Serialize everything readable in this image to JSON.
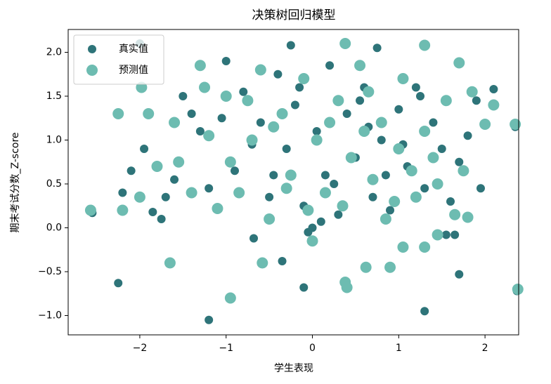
{
  "chart_data": {
    "type": "scatter",
    "title": "决策树回归模型",
    "x_label": "学生表现",
    "y_label": "期末考试分数_Z-score",
    "xlim": [
      -2.83,
      2.39
    ],
    "ylim": [
      -1.22,
      2.26
    ],
    "xticks": [
      {
        "value": -2,
        "label": "−2"
      },
      {
        "value": -1,
        "label": "−1"
      },
      0,
      1,
      2
    ],
    "yticks": [
      {
        "value": -1,
        "label": "−1.0"
      },
      {
        "value": -0.5,
        "label": "−0.5"
      },
      {
        "value": 0,
        "label": "0.0"
      },
      {
        "value": 0.5,
        "label": "0.5"
      },
      {
        "value": 1,
        "label": "1.0"
      },
      {
        "value": 1.5,
        "label": "1.5"
      },
      {
        "value": 2,
        "label": "2.0"
      }
    ],
    "legend": "upper left",
    "series": [
      {
        "name": "真实值",
        "color": "#2e7479",
        "x": [
          -2.55,
          -2.25,
          -1.2,
          1.3,
          2.37,
          1.7,
          -0.1,
          -0.35,
          -0.68,
          1.55,
          -2.0,
          -0.25,
          0.75,
          1.9,
          2.1,
          -2.2,
          -2.1,
          -1.95,
          -1.75,
          -1.85,
          -1.6,
          -1.5,
          -1.3,
          -1.2,
          -1.0,
          -0.9,
          -0.8,
          -0.6,
          -0.5,
          -0.4,
          -0.3,
          -0.2,
          -0.1,
          0.0,
          0.05,
          0.15,
          0.2,
          0.3,
          0.4,
          0.5,
          0.6,
          0.7,
          0.8,
          0.9,
          1.0,
          1.1,
          1.2,
          1.3,
          1.4,
          1.5,
          1.6,
          1.7,
          1.8,
          1.95,
          2.35,
          1.65,
          0.1,
          -0.05,
          -1.7,
          -1.4,
          -0.7,
          0.55,
          1.05,
          0.25,
          -0.15,
          0.65,
          -1.05,
          1.25,
          -0.45,
          0.85
        ],
        "values": [
          0.17,
          -0.63,
          -1.05,
          -0.95,
          -0.72,
          -0.53,
          -0.68,
          -0.38,
          -0.12,
          -0.08,
          2.1,
          2.08,
          2.05,
          1.45,
          1.58,
          0.4,
          0.65,
          0.9,
          0.1,
          0.18,
          0.55,
          1.5,
          1.1,
          0.45,
          1.9,
          0.65,
          1.55,
          1.2,
          0.35,
          1.75,
          0.9,
          1.4,
          0.25,
          0.0,
          1.1,
          0.6,
          1.85,
          0.15,
          1.3,
          0.8,
          1.6,
          0.35,
          1.0,
          0.2,
          1.35,
          0.7,
          1.6,
          0.45,
          1.2,
          0.9,
          0.3,
          0.75,
          1.05,
          0.45,
          1.15,
          -0.08,
          0.07,
          -0.05,
          0.35,
          1.3,
          0.95,
          1.45,
          0.95,
          0.5,
          1.6,
          1.15,
          1.25,
          1.5,
          0.6,
          0.6
        ]
      },
      {
        "name": "预测值",
        "color": "#6dbcb1",
        "x": [
          -2.57,
          -2.25,
          -2.2,
          -1.98,
          -1.65,
          -0.95,
          -0.58,
          0.0,
          0.62,
          0.9,
          1.05,
          1.3,
          1.45,
          0.38,
          0.4,
          2.38,
          0.38,
          1.3,
          1.7,
          2.1,
          2.0,
          2.35,
          -2.0,
          -1.8,
          -1.6,
          -1.4,
          -1.3,
          -1.1,
          -1.0,
          -0.85,
          -0.7,
          -0.6,
          -0.5,
          -0.35,
          -0.25,
          -0.1,
          0.05,
          0.15,
          0.3,
          0.45,
          0.55,
          0.7,
          0.8,
          0.95,
          1.05,
          1.15,
          1.3,
          1.45,
          1.55,
          1.65,
          1.75,
          1.85,
          1.8,
          -1.9,
          -1.55,
          -1.2,
          -0.95,
          -0.45,
          0.2,
          0.6,
          1.0,
          1.4,
          -0.75,
          0.35,
          0.85,
          -0.05,
          0.65,
          -1.25,
          1.2,
          -0.3
        ],
        "values": [
          0.2,
          1.3,
          0.2,
          1.6,
          -0.4,
          -0.8,
          -0.4,
          -0.15,
          -0.45,
          -0.45,
          -0.22,
          -0.22,
          -0.08,
          -0.62,
          -0.68,
          -0.7,
          2.1,
          2.08,
          1.88,
          1.4,
          1.18,
          1.18,
          0.35,
          0.7,
          1.2,
          0.4,
          1.85,
          0.22,
          1.5,
          0.4,
          1.0,
          1.8,
          0.1,
          1.3,
          0.6,
          1.7,
          1.0,
          0.4,
          1.45,
          0.8,
          1.85,
          0.55,
          1.2,
          0.3,
          1.7,
          0.65,
          1.1,
          0.5,
          1.45,
          0.15,
          0.65,
          1.55,
          0.12,
          1.3,
          0.75,
          1.05,
          0.75,
          1.15,
          1.2,
          1.1,
          0.9,
          0.8,
          1.45,
          0.25,
          0.1,
          0.2,
          1.55,
          1.6,
          0.35,
          0.45
        ]
      }
    ]
  }
}
